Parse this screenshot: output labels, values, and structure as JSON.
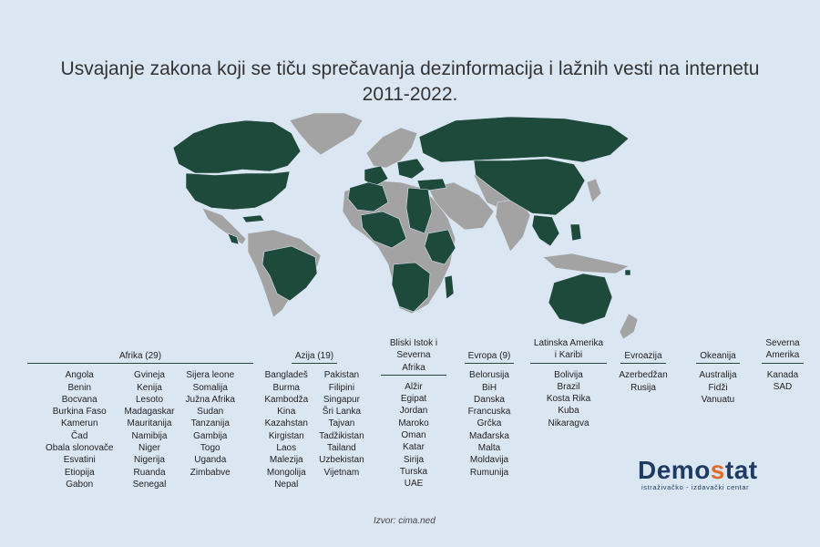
{
  "title_lines": [
    "Usvajanje zakona koji se tiču sprečavanja dezinformacija i lažnih vesti na internetu",
    "2011-2022."
  ],
  "colors": {
    "background": "#dbe6f3",
    "adopted": "#1e4a3b",
    "not_adopted": "#a3a3a3",
    "rule": "#244a3a"
  },
  "regions": {
    "afrika": {
      "header": "Afrika (29)",
      "columns": [
        [
          "Angola",
          "Benin",
          "Bocvana",
          "Burkina Faso",
          "Kamerun",
          "Čad",
          "Obala slonovače",
          "Esvatini",
          "Etiopija",
          "Gabon"
        ],
        [
          "Gvineja",
          "Kenija",
          "Lesoto",
          "Madagaskar",
          "Mauritanija",
          "Namibija",
          "Niger",
          "Nigerija",
          "Ruanda",
          "Senegal"
        ],
        [
          "Sijera leone",
          "Somalija",
          "Južna Afrika",
          "Sudan",
          "Tanzanija",
          "Gambija",
          "Togo",
          "Uganda",
          "Zimbabve"
        ]
      ]
    },
    "azija": {
      "header": "Azija (19)",
      "columns": [
        [
          "Bangladeš",
          "Burma",
          "Kambodža",
          "Kina",
          "Kazahstan",
          "Kirgistan",
          "Laos",
          "Malezija",
          "Mongolija",
          "Nepal"
        ],
        [
          "Pakistan",
          "Filipini",
          "Singapur",
          "Šri Lanka",
          "Tajvan",
          "Tadžikistan",
          "Tailand",
          "Uzbekistan",
          "Vijetnam"
        ]
      ]
    },
    "bliski_istok": {
      "header_lines": [
        "Bliski Istok i",
        "Severna Afrika"
      ],
      "countries": [
        "Alžir",
        "Egipat",
        "Jordan",
        "Maroko",
        "Oman",
        "Katar",
        "Sirija",
        "Turska",
        "UAE"
      ]
    },
    "evropa": {
      "header": "Evropa (9)",
      "countries": [
        "Belorusija",
        "BiH",
        "Danska",
        "Francuska",
        "Grčka",
        "Mađarska",
        "Malta",
        "Moldavija",
        "Rumunija"
      ]
    },
    "latinska_amerika": {
      "header_lines": [
        "Latinska Amerika",
        "i Karibi"
      ],
      "countries": [
        "Bolivija",
        "Brazil",
        "Kosta Rika",
        "Kuba",
        "Nikaragva"
      ]
    },
    "evroazija": {
      "header": "Evroazija",
      "countries": [
        "Azerbedžan",
        "Rusija"
      ]
    },
    "okeanija": {
      "header": "Okeanija",
      "countries": [
        "Australija",
        "Fidži",
        "Vanuatu"
      ]
    },
    "severna_amerika": {
      "header_lines": [
        "Severna",
        "Amerika"
      ],
      "countries": [
        "Kanada",
        "SAD"
      ]
    }
  },
  "source": "Izvor: cima.ned",
  "logo": {
    "word_start": "Demo",
    "word_accent": "s",
    "word_end": "tat",
    "tagline": "istraživačko - izdavački  centar"
  }
}
